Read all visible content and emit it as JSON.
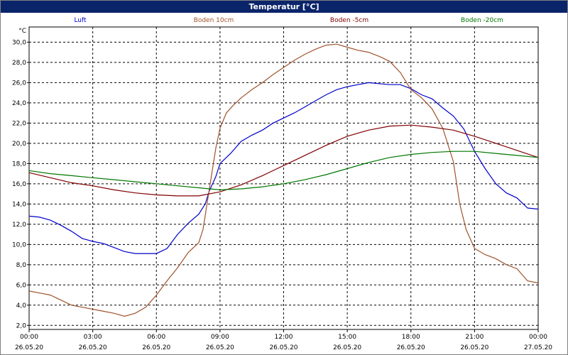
{
  "window": {
    "title": "Temperatur [°C]"
  },
  "chart_data": {
    "type": "line",
    "title": "Temperatur [°C]",
    "ylabel": "°C",
    "ylim": [
      1.6,
      31.5
    ],
    "yticks": [
      "2,0",
      "4,0",
      "6,0",
      "8,0",
      "10,0",
      "12,0",
      "14,0",
      "16,0",
      "18,0",
      "20,0",
      "22,0",
      "24,0",
      "26,0",
      "28,0",
      "30,0"
    ],
    "x_range_hours": [
      0,
      24
    ],
    "xticks": [
      {
        "time": "00:00",
        "date": "26.05.20"
      },
      {
        "time": "03:00",
        "date": "26.05.20"
      },
      {
        "time": "06:00",
        "date": "26.05.20"
      },
      {
        "time": "09:00",
        "date": "26.05.20"
      },
      {
        "time": "12:00",
        "date": "26.05.20"
      },
      {
        "time": "15:00",
        "date": "26.05.20"
      },
      {
        "time": "18:00",
        "date": "26.05.20"
      },
      {
        "time": "21:00",
        "date": "26.05.20"
      },
      {
        "time": "00:00",
        "date": "27.05.20"
      }
    ],
    "legend_position": "top",
    "grid": true,
    "series": [
      {
        "name": "Luft",
        "color": "#0000cc",
        "points": [
          [
            0,
            12.8
          ],
          [
            0.5,
            12.7
          ],
          [
            1,
            12.4
          ],
          [
            1.5,
            11.9
          ],
          [
            2,
            11.3
          ],
          [
            2.5,
            10.6
          ],
          [
            3,
            10.3
          ],
          [
            3.5,
            10.1
          ],
          [
            4,
            9.7
          ],
          [
            4.5,
            9.3
          ],
          [
            5,
            9.1
          ],
          [
            5.5,
            9.1
          ],
          [
            6,
            9.1
          ],
          [
            6.5,
            9.6
          ],
          [
            7,
            11.0
          ],
          [
            7.5,
            12.1
          ],
          [
            8,
            13.0
          ],
          [
            8.3,
            14.0
          ],
          [
            8.5,
            15.3
          ],
          [
            8.8,
            16.7
          ],
          [
            9,
            18.0
          ],
          [
            9.5,
            19.0
          ],
          [
            10,
            20.2
          ],
          [
            10.5,
            20.8
          ],
          [
            11,
            21.3
          ],
          [
            11.5,
            22.0
          ],
          [
            12,
            22.5
          ],
          [
            12.5,
            23.0
          ],
          [
            13,
            23.6
          ],
          [
            13.5,
            24.2
          ],
          [
            14,
            24.8
          ],
          [
            14.5,
            25.3
          ],
          [
            15,
            25.6
          ],
          [
            15.5,
            25.8
          ],
          [
            16,
            26.0
          ],
          [
            16.5,
            25.9
          ],
          [
            17,
            25.8
          ],
          [
            17.5,
            25.8
          ],
          [
            18,
            25.4
          ],
          [
            18.5,
            24.8
          ],
          [
            19,
            24.4
          ],
          [
            19.5,
            23.5
          ],
          [
            20,
            22.7
          ],
          [
            20.5,
            21.4
          ],
          [
            21,
            19.2
          ],
          [
            21.5,
            17.5
          ],
          [
            22,
            16.0
          ],
          [
            22.5,
            15.1
          ],
          [
            23,
            14.6
          ],
          [
            23.5,
            13.6
          ],
          [
            24,
            13.5
          ]
        ]
      },
      {
        "name": "Boden 10cm",
        "color": "#a0522d",
        "points": [
          [
            0,
            5.4
          ],
          [
            0.5,
            5.2
          ],
          [
            1,
            5.0
          ],
          [
            1.5,
            4.5
          ],
          [
            2,
            4.0
          ],
          [
            2.5,
            3.8
          ],
          [
            3,
            3.6
          ],
          [
            3.5,
            3.4
          ],
          [
            4,
            3.2
          ],
          [
            4.5,
            2.9
          ],
          [
            5,
            3.2
          ],
          [
            5.5,
            3.8
          ],
          [
            6,
            5.0
          ],
          [
            6.5,
            6.4
          ],
          [
            7,
            7.7
          ],
          [
            7.5,
            9.2
          ],
          [
            8,
            10.2
          ],
          [
            8.2,
            11.5
          ],
          [
            8.5,
            15.5
          ],
          [
            8.8,
            19.5
          ],
          [
            9,
            21.5
          ],
          [
            9.3,
            23.0
          ],
          [
            9.6,
            23.7
          ],
          [
            10,
            24.5
          ],
          [
            10.5,
            25.3
          ],
          [
            11,
            26.0
          ],
          [
            11.5,
            26.8
          ],
          [
            12,
            27.5
          ],
          [
            12.5,
            28.2
          ],
          [
            13,
            28.8
          ],
          [
            13.5,
            29.3
          ],
          [
            14,
            29.7
          ],
          [
            14.5,
            29.8
          ],
          [
            15,
            29.5
          ],
          [
            15.5,
            29.2
          ],
          [
            16,
            29.0
          ],
          [
            16.5,
            28.6
          ],
          [
            17,
            28.1
          ],
          [
            17.5,
            27.0
          ],
          [
            18,
            25.3
          ],
          [
            18.5,
            24.5
          ],
          [
            19,
            23.4
          ],
          [
            19.5,
            21.5
          ],
          [
            20,
            18.2
          ],
          [
            20.3,
            14.0
          ],
          [
            20.6,
            11.5
          ],
          [
            21,
            9.6
          ],
          [
            21.5,
            9.0
          ],
          [
            22,
            8.6
          ],
          [
            22.5,
            8.0
          ],
          [
            23,
            7.6
          ],
          [
            23.5,
            6.4
          ],
          [
            24,
            6.2
          ]
        ]
      },
      {
        "name": "Boden -5cm",
        "color": "#800000",
        "points": [
          [
            0,
            17.1
          ],
          [
            1,
            16.6
          ],
          [
            2,
            16.1
          ],
          [
            3,
            15.8
          ],
          [
            4,
            15.4
          ],
          [
            5,
            15.1
          ],
          [
            6,
            14.9
          ],
          [
            7,
            14.8
          ],
          [
            8,
            14.8
          ],
          [
            9,
            15.2
          ],
          [
            10,
            15.9
          ],
          [
            11,
            16.8
          ],
          [
            12,
            17.8
          ],
          [
            13,
            18.8
          ],
          [
            14,
            19.8
          ],
          [
            15,
            20.7
          ],
          [
            16,
            21.3
          ],
          [
            17,
            21.7
          ],
          [
            18,
            21.8
          ],
          [
            19,
            21.6
          ],
          [
            20,
            21.3
          ],
          [
            21,
            20.7
          ],
          [
            22,
            20.0
          ],
          [
            23,
            19.3
          ],
          [
            24,
            18.6
          ]
        ]
      },
      {
        "name": "Boden -20cm",
        "color": "#007700",
        "points": [
          [
            0,
            17.3
          ],
          [
            1,
            17.0
          ],
          [
            2,
            16.8
          ],
          [
            3,
            16.6
          ],
          [
            4,
            16.4
          ],
          [
            5,
            16.2
          ],
          [
            6,
            16.0
          ],
          [
            7,
            15.8
          ],
          [
            8,
            15.6
          ],
          [
            9,
            15.4
          ],
          [
            10,
            15.5
          ],
          [
            11,
            15.7
          ],
          [
            12,
            16.0
          ],
          [
            13,
            16.4
          ],
          [
            14,
            16.9
          ],
          [
            15,
            17.5
          ],
          [
            16,
            18.1
          ],
          [
            17,
            18.6
          ],
          [
            18,
            18.9
          ],
          [
            19,
            19.1
          ],
          [
            20,
            19.2
          ],
          [
            21,
            19.2
          ],
          [
            22,
            19.0
          ],
          [
            23,
            18.8
          ],
          [
            24,
            18.6
          ]
        ]
      }
    ]
  }
}
